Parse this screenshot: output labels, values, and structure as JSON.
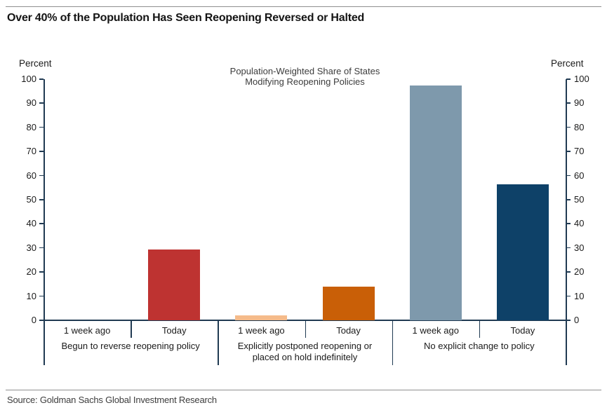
{
  "header": {
    "title": "Over 40% of the Population Has Seen Reopening Reversed or Halted"
  },
  "source": {
    "text": "Source: Goldman Sachs Global Investment Research"
  },
  "chart_data": {
    "type": "bar",
    "title": "Population-Weighted Share of States Modifying Reopening Policies",
    "title_lines": [
      "Population-Weighted Share of States",
      "Modifying Reopening Policies"
    ],
    "axis_label_left": "Percent",
    "axis_label_right": "Percent",
    "ylim": [
      0,
      100
    ],
    "ytick_interval": 10,
    "grid": false,
    "legend": false,
    "dual_axis": true,
    "axis_color": "#203a52",
    "groups": [
      {
        "label": "Begun to reverse reopening policy",
        "label_lines": [
          "Begun to reverse reopening policy"
        ],
        "bars": [
          {
            "category": "1 week ago",
            "value": 0
          },
          {
            "category": "Today",
            "value": 29.5,
            "color": "#BE3331"
          }
        ]
      },
      {
        "label": "Explicitly postponed reopening or placed on hold indefinitely",
        "label_lines": [
          "Explicitly postponed reopening or",
          "placed on hold indefinitely"
        ],
        "bars": [
          {
            "category": "1 week ago",
            "value": 2,
            "color": "#F5BB8A"
          },
          {
            "category": "Today",
            "value": 14,
            "color": "#C95F07"
          }
        ]
      },
      {
        "label": "No explicit change to policy",
        "label_lines": [
          "No explicit change to policy"
        ],
        "bars": [
          {
            "category": "1 week ago",
            "value": 97.5,
            "color": "#7E99AC"
          },
          {
            "category": "Today",
            "value": 56.5,
            "color": "#0E4168"
          }
        ]
      }
    ]
  }
}
